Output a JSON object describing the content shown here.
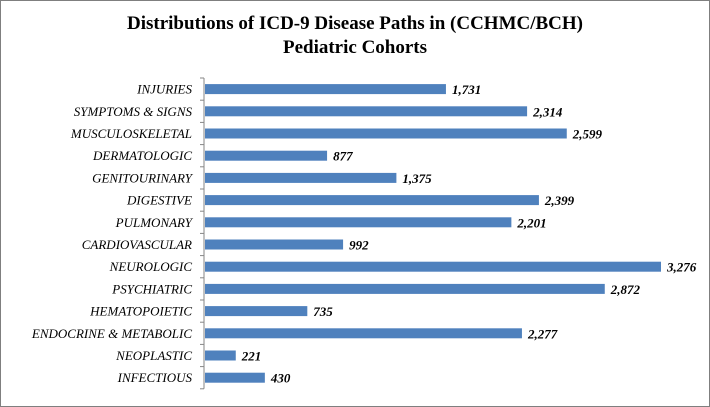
{
  "chart_data": {
    "type": "bar",
    "orientation": "horizontal",
    "title_line1": "Distributions of ICD-9 Disease Paths in (CCHMC/BCH)",
    "title_line2": "Pediatric Cohorts",
    "categories": [
      "INJURIES",
      "SYMPTOMS & SIGNS",
      "MUSCULOSKELETAL",
      "DERMATOLOGIC",
      "GENITOURINARY",
      "DIGESTIVE",
      "PULMONARY",
      "CARDIOVASCULAR",
      "NEUROLOGIC",
      "PSYCHIATRIC",
      "HEMATOPOIETIC",
      "ENDOCRINE & METABOLIC",
      "NEOPLASTIC",
      "INFECTIOUS"
    ],
    "values": [
      1731,
      2314,
      2599,
      877,
      1375,
      2399,
      2201,
      992,
      3276,
      2872,
      735,
      2277,
      221,
      430
    ],
    "value_labels": [
      "1,731",
      "2,314",
      "2,599",
      "877",
      "1,375",
      "2,399",
      "2,201",
      "992",
      "3,276",
      "2,872",
      "735",
      "2,277",
      "221",
      "430"
    ],
    "xlim": [
      0,
      3276
    ],
    "grid": false,
    "legend": "none",
    "bar_color": "#4f81bd",
    "axis_color": "#868686"
  }
}
